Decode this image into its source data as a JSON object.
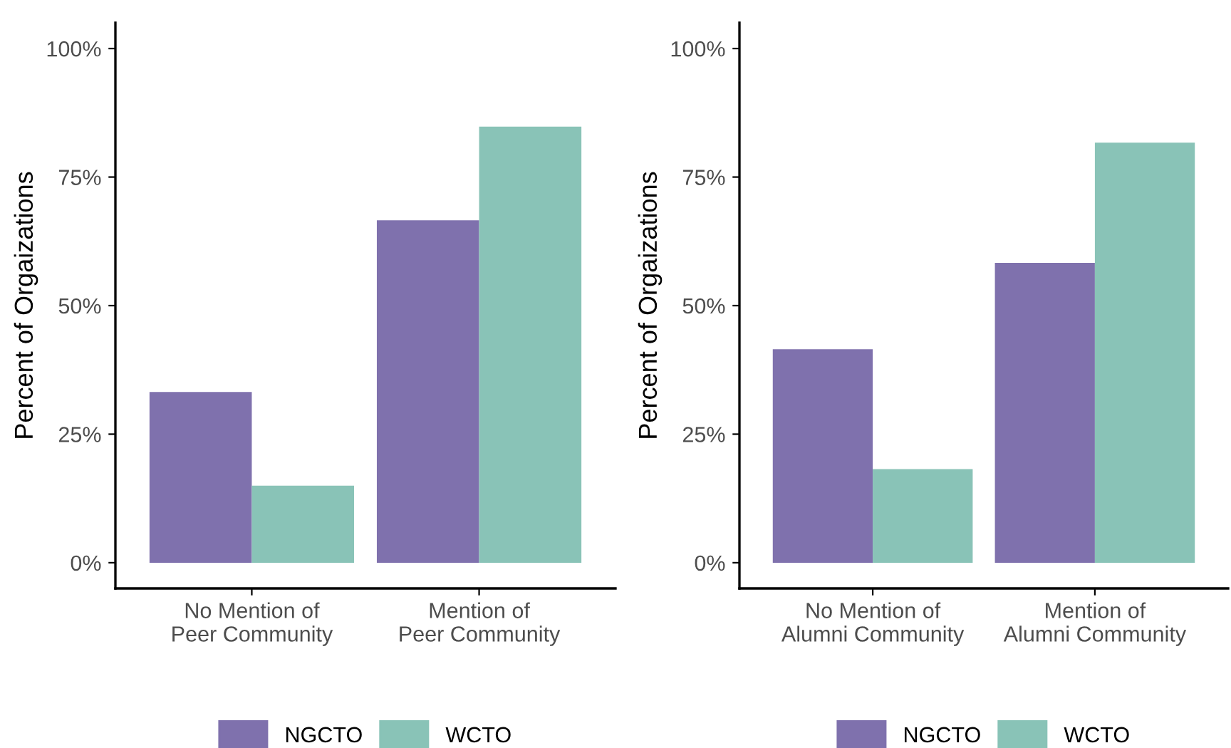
{
  "chart_data": [
    {
      "type": "bar",
      "ylabel": "Percent of Orgaizations",
      "categories": [
        "No Mention of\nPeer Community",
        "Mention of\nPeer Community"
      ],
      "series": [
        {
          "name": "NGCTO",
          "color": "#7f71ad",
          "values": [
            33.2,
            66.6
          ]
        },
        {
          "name": "WCTO",
          "color": "#89c3b7",
          "values": [
            15.0,
            84.8
          ]
        }
      ],
      "ylim": [
        -5,
        105
      ],
      "yticks": [
        {
          "value": 0,
          "label": "0%"
        },
        {
          "value": 25,
          "label": "25%"
        },
        {
          "value": 50,
          "label": "50%"
        },
        {
          "value": 75,
          "label": "75%"
        },
        {
          "value": 100,
          "label": "100%"
        }
      ],
      "grid": false,
      "legend": "bottom"
    },
    {
      "type": "bar",
      "ylabel": "Percent of Orgaizations",
      "categories": [
        "No Mention of\nAlumni Community",
        "Mention of\nAlumni Community"
      ],
      "series": [
        {
          "name": "NGCTO",
          "color": "#7f71ad",
          "values": [
            41.5,
            58.3
          ]
        },
        {
          "name": "WCTO",
          "color": "#89c3b7",
          "values": [
            18.2,
            81.7
          ]
        }
      ],
      "ylim": [
        -5,
        105
      ],
      "yticks": [
        {
          "value": 0,
          "label": "0%"
        },
        {
          "value": 25,
          "label": "25%"
        },
        {
          "value": 50,
          "label": "50%"
        },
        {
          "value": 75,
          "label": "75%"
        },
        {
          "value": 100,
          "label": "100%"
        }
      ],
      "grid": false,
      "legend": "bottom"
    }
  ]
}
